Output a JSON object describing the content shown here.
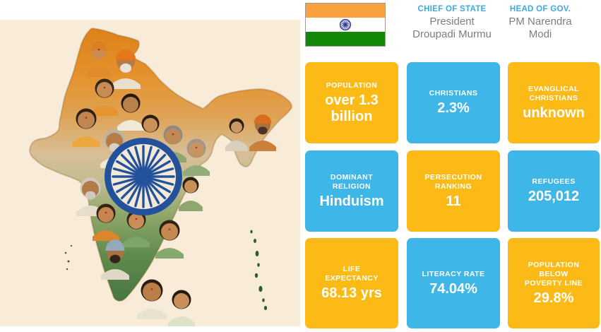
{
  "title": "India country profile infographic",
  "colors": {
    "panel-cream": "#F8ECD9",
    "card-yellow": "#FBBA16",
    "card-blue": "#3FB6E8",
    "header-accent": "#3FA9DC",
    "header-text": "#7B7D80",
    "flag-saffron": "#F9A13E",
    "flag-green": "#138808",
    "flag-navy": "#2B3990",
    "chakra-navy": "#24519C",
    "chakra-cream": "#F3EAD8",
    "map-orange": "#DE861F",
    "map-green": "#4E7D43"
  },
  "header": {
    "flag_name": "india-flag",
    "chief_of_state": {
      "label": "CHIEF OF STATE",
      "value": "President Droupadi Murmu"
    },
    "head_of_gov": {
      "label": "HEAD OF GOV.",
      "value": "PM Narendra Modi"
    }
  },
  "stats": [
    {
      "label": "POPULATION",
      "value": "over 1.3 billion",
      "color": "yellow"
    },
    {
      "label": "CHRISTIANS",
      "value": "2.3%",
      "color": "blue"
    },
    {
      "label": "EVANGLICAL CHRISTIANS",
      "value": "unknown",
      "color": "yellow"
    },
    {
      "label": "DOMINANT RELIGION",
      "value": "Hinduism",
      "color": "blue"
    },
    {
      "label": "PERSECUTION RANKING",
      "value": "11",
      "color": "yellow"
    },
    {
      "label": "REFUGEES",
      "value": "205,012",
      "color": "blue"
    },
    {
      "label": "LIFE EXPECTANCY",
      "value": "68.13 yrs",
      "color": "yellow"
    },
    {
      "label": "LITERACY RATE",
      "value": "74.04%",
      "color": "blue"
    },
    {
      "label": "POPULATION BELOW POVERTY LINE",
      "value": "29.8%",
      "color": "yellow"
    }
  ],
  "illustration": {
    "description": "Map of India formed by a collage of portraits of diverse Indian people, with the Ashoka Chakra wheel at the center"
  }
}
